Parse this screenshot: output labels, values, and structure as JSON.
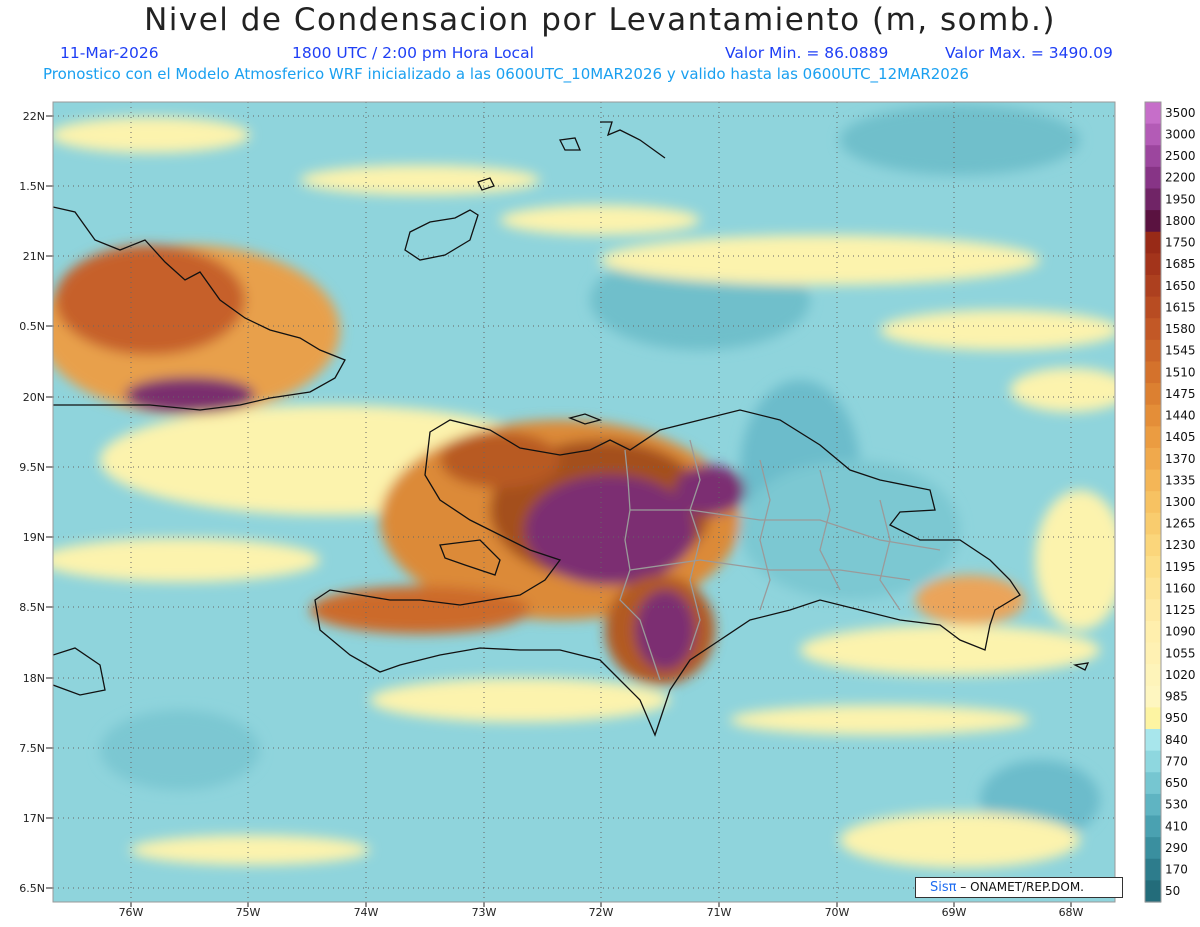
{
  "header": {
    "title": "Nivel de Condensacion por Levantamiento (m, somb.)",
    "date": "11-Mar-2026",
    "time": "1800 UTC / 2:00 pm Hora Local",
    "valmin": "Valor Min. = 86.0889",
    "valmax": "Valor Max. = 3490.09",
    "model_line": "Pronostico con el Modelo Atmosferico WRF inicializado a las 0600UTC_10MAR2026 y valido hasta las  0600UTC_12MAR2026"
  },
  "map": {
    "lon_ticks": [
      "76W",
      "75W",
      "74W",
      "73W",
      "72W",
      "71W",
      "70W",
      "69W",
      "68W"
    ],
    "lat_ticks": [
      "22N",
      "1.5N",
      "21N",
      "0.5N",
      "20N",
      "9.5N",
      "19N",
      "8.5N",
      "18N",
      "7.5N",
      "17N",
      "6.5N"
    ]
  },
  "colorbar": {
    "labels": [
      "3500",
      "3000",
      "2500",
      "2200",
      "1950",
      "1800",
      "1750",
      "1685",
      "1650",
      "1615",
      "1580",
      "1545",
      "1510",
      "1475",
      "1440",
      "1405",
      "1370",
      "1335",
      "1300",
      "1265",
      "1230",
      "1195",
      "1160",
      "1125",
      "1090",
      "1055",
      "1020",
      "985",
      "950",
      "840",
      "770",
      "650",
      "530",
      "410",
      "290",
      "170",
      "50"
    ],
    "colors": [
      "#c66ec9",
      "#b35bb6",
      "#9c469e",
      "#873486",
      "#702466",
      "#5a1240",
      "#982a17",
      "#a3341b",
      "#ad401f",
      "#b84c22",
      "#c25826",
      "#cb6529",
      "#d4722c",
      "#dc8031",
      "#e48e38",
      "#eb9c41",
      "#f0a94c",
      "#f4b657",
      "#f7c262",
      "#f9cc6e",
      "#fbd67b",
      "#fcde88",
      "#fde496",
      "#feeaa3",
      "#ffefad",
      "#fff1b3",
      "#fef4ba",
      "#fef6c0",
      "#fdf4a2",
      "#a8e6ec",
      "#8ed7df",
      "#76c6d1",
      "#5fb4c2",
      "#4aa1b1",
      "#3a8f9f",
      "#2d7c8c",
      "#236c7a"
    ]
  },
  "credit": {
    "sis": "Sisπ",
    "org": " – ONAMET/REP.DOM."
  }
}
